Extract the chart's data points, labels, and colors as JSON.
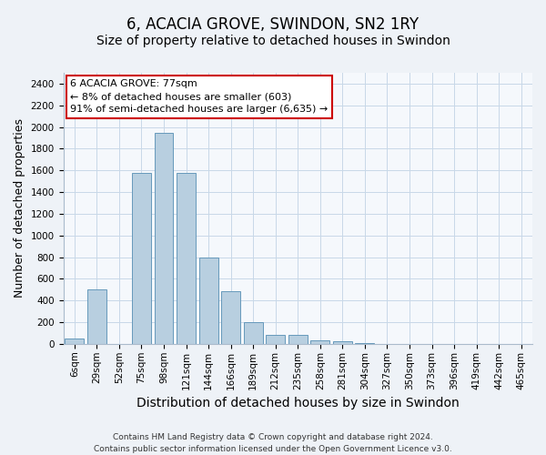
{
  "title": "6, ACACIA GROVE, SWINDON, SN2 1RY",
  "subtitle": "Size of property relative to detached houses in Swindon",
  "xlabel": "Distribution of detached houses by size in Swindon",
  "ylabel": "Number of detached properties",
  "categories": [
    "6sqm",
    "29sqm",
    "52sqm",
    "75sqm",
    "98sqm",
    "121sqm",
    "144sqm",
    "166sqm",
    "189sqm",
    "212sqm",
    "235sqm",
    "258sqm",
    "281sqm",
    "304sqm",
    "327sqm",
    "350sqm",
    "373sqm",
    "396sqm",
    "419sqm",
    "442sqm",
    "465sqm"
  ],
  "values": [
    50,
    500,
    0,
    1580,
    1950,
    1580,
    800,
    485,
    200,
    85,
    85,
    30,
    25,
    5,
    0,
    0,
    0,
    0,
    0,
    0,
    0
  ],
  "bar_color": "#b8cfe0",
  "bar_edge_color": "#6699bb",
  "ylim": [
    0,
    2500
  ],
  "yticks": [
    0,
    200,
    400,
    600,
    800,
    1000,
    1200,
    1400,
    1600,
    1800,
    2000,
    2200,
    2400
  ],
  "annotation_text": "6 ACACIA GROVE: 77sqm\n← 8% of detached houses are smaller (603)\n91% of semi-detached houses are larger (6,635) →",
  "annotation_box_color": "#ffffff",
  "annotation_box_edge_color": "#cc0000",
  "footer_line1": "Contains HM Land Registry data © Crown copyright and database right 2024.",
  "footer_line2": "Contains public sector information licensed under the Open Government Licence v3.0.",
  "bg_color": "#eef2f7",
  "plot_bg_color": "#f5f8fc",
  "grid_color": "#c8d8e8",
  "title_fontsize": 12,
  "subtitle_fontsize": 10,
  "tick_fontsize": 7.5,
  "ylabel_fontsize": 9,
  "xlabel_fontsize": 10,
  "annotation_fontsize": 8,
  "footer_fontsize": 6.5
}
